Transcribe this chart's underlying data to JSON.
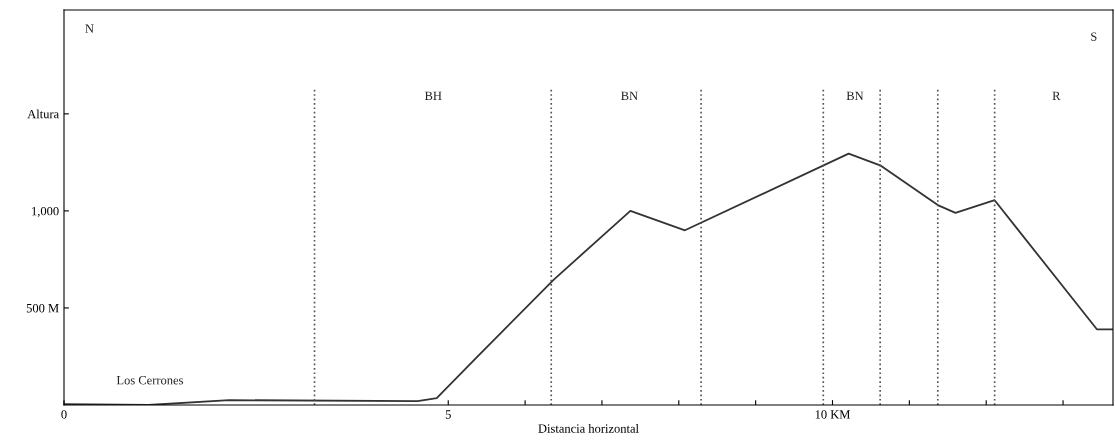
{
  "chart_data": {
    "type": "line",
    "xlabel": "Distancia horizontal",
    "x": [
      0,
      1.1,
      2.15,
      4.6,
      4.85,
      5.37,
      6.37,
      7.37,
      8.08,
      10.21,
      10.62,
      11.37,
      11.6,
      12.11,
      13.44,
      13.65
    ],
    "series": [
      {
        "color": "#333333",
        "values": [
          5,
          0,
          25,
          20,
          35,
          245,
          645,
          1000,
          900,
          1295,
          1235,
          1030,
          990,
          1055,
          390,
          390
        ]
      }
    ],
    "xlim": [
      0,
      13.65
    ],
    "xticks": [
      0,
      5,
      {
        "value": 6,
        "label": null
      },
      {
        "value": 7,
        "label": null
      },
      {
        "value": 8,
        "label": null
      },
      {
        "value": 9,
        "label": null
      },
      {
        "value": 10,
        "label": "10 KM"
      },
      {
        "value": 11,
        "label": null
      },
      {
        "value": 12,
        "label": null
      },
      {
        "value": 13,
        "label": null
      }
    ],
    "ylim": [
      0,
      2035
    ],
    "yticks": [
      {
        "value": 500,
        "label": "500 M"
      },
      {
        "value": 1000,
        "label": "1,000"
      },
      {
        "value": 1500,
        "label": "Altura"
      }
    ],
    "ref_lines": [
      {
        "axis": "x",
        "value": 3.26,
        "line_style": "dotted"
      },
      {
        "axis": "x",
        "value": 6.34,
        "line_style": "dotted"
      },
      {
        "axis": "x",
        "value": 8.29,
        "line_style": "dotted"
      },
      {
        "axis": "x",
        "value": 9.88,
        "line_style": "dotted"
      },
      {
        "axis": "x",
        "value": 10.62,
        "line_style": "dotted"
      },
      {
        "axis": "x",
        "value": 11.37,
        "line_style": "dotted"
      },
      {
        "axis": "x",
        "value": 12.11,
        "line_style": "dotted"
      }
    ],
    "annotations": [
      "N",
      "S",
      "BH",
      "BN",
      "BN",
      "R",
      "Los Cerrones"
    ],
    "grid": false,
    "legend": false,
    "marker": "none",
    "line_style": "solid"
  }
}
